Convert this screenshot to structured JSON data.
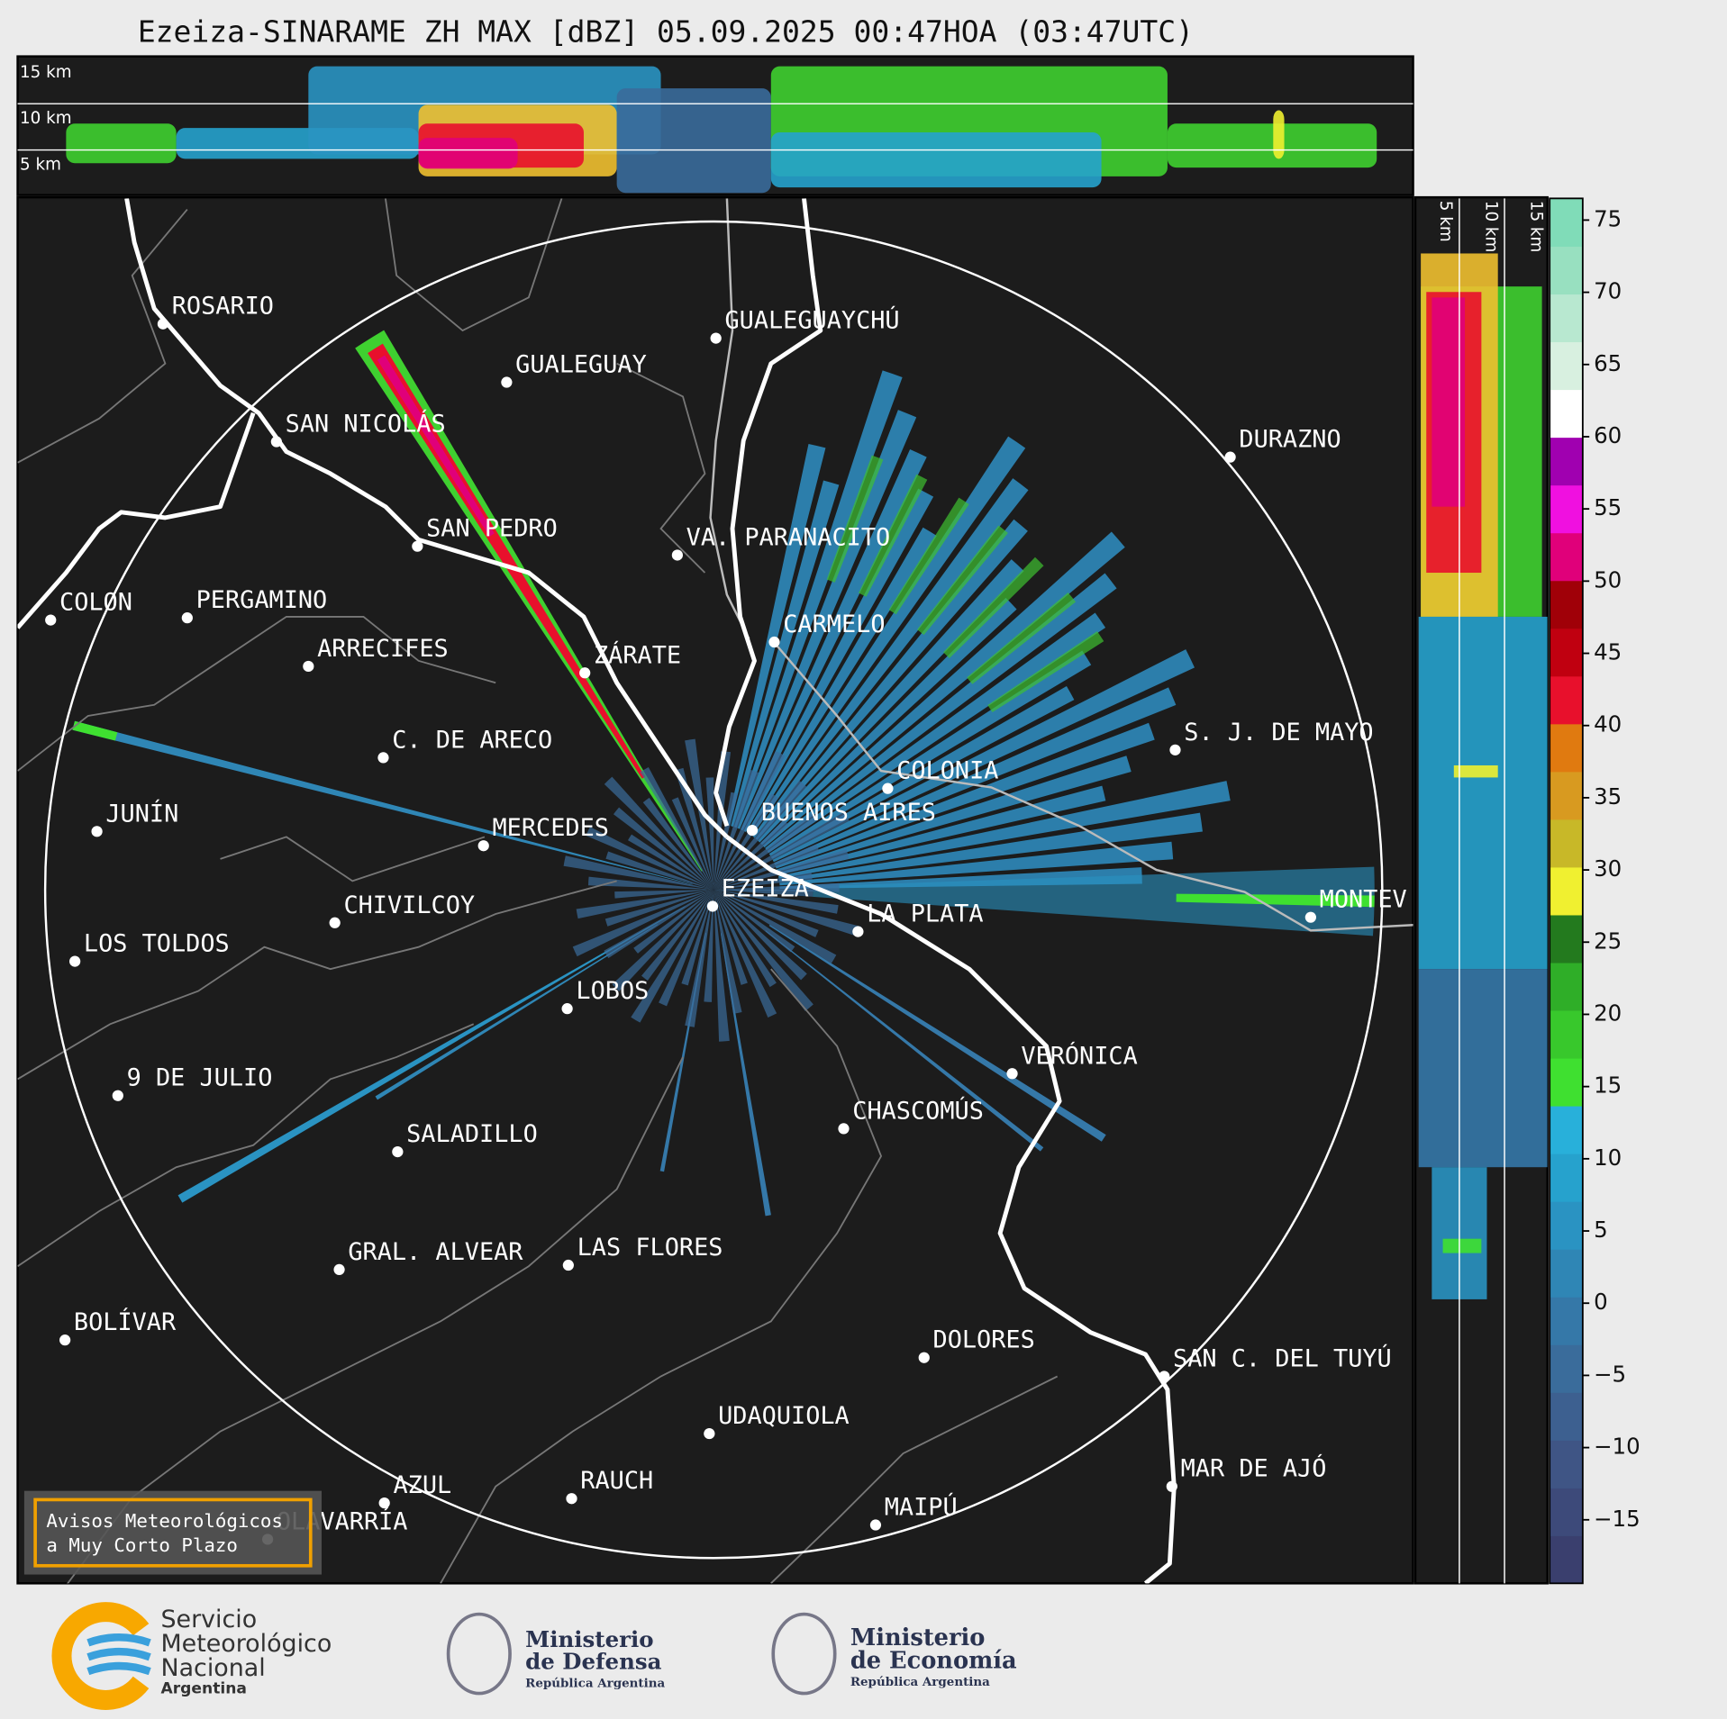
{
  "title": "Ezeiza-SINARAME ZH MAX [dBZ] 05.09.2025 00:47HOA (03:47UTC)",
  "height_panels": {
    "top": [
      "15 km",
      "10 km",
      "5 km"
    ],
    "side": [
      "5 km",
      "10 km",
      "15 km"
    ]
  },
  "cities": [
    "ROSARIO",
    "GUALEGUAY",
    "GUALEGUAYCHÚ",
    "SAN NICOLÁS",
    "DURAZNO",
    "SAN PEDRO",
    "VA. PARANACITO",
    "COLON",
    "PERGAMINO",
    "CARMELO",
    "ARRECIFES",
    "ZÁRATE",
    "C. DE ARECO",
    "S. J. DE MAYO",
    "COLONIA",
    "BUENOS AIRES",
    "JUNÍN",
    "MERCEDES",
    "EZEIZA",
    "CHIVILCOY",
    "MONTEV",
    "LA PLATA",
    "LOS TOLDOS",
    "LOBOS",
    "VERÓNICA",
    "9 DE JULIO",
    "CHASCOMÚS",
    "SALADILLO",
    "GRAL. ALVEAR",
    "LAS FLORES",
    "BOLÍVAR",
    "DOLORES",
    "SAN C. DEL TUYÚ",
    "UDAQUIOLA",
    "MAR DE AJÓ",
    "RAUCH",
    "AZUL",
    "MAIPÚ",
    "OLAVARRÍA"
  ],
  "colorbar": {
    "lim": [
      -19.4,
      76.5
    ],
    "ticks": [
      75,
      70,
      65,
      60,
      55,
      50,
      45,
      40,
      35,
      30,
      25,
      20,
      15,
      10,
      5,
      0,
      {
        "value": -5,
        "label": "−5"
      },
      {
        "value": -10,
        "label": "−10"
      },
      {
        "value": -15,
        "label": "−15"
      }
    ],
    "colors": [
      "#3a3f6e",
      "#3d4a7a",
      "#3f5585",
      "#3d6090",
      "#3a6c9b",
      "#3578a8",
      "#2f86b5",
      "#2a93c2",
      "#26a2cd",
      "#28b0da",
      "#3fe030",
      "#38c82c",
      "#2fae28",
      "#237a1e",
      "#f0f030",
      "#c8b828",
      "#d89a20",
      "#e07a10",
      "#e8102c",
      "#c00010",
      "#a00008",
      "#e0007a",
      "#f010e0",
      "#a000b0",
      "#ffffff",
      "#d8f0e0",
      "#b8e8d0",
      "#98e0c0",
      "#80dcb8"
    ]
  },
  "notice": [
    "Avisos Meteorológicos",
    "a Muy Corto Plazo"
  ],
  "logos": {
    "smn": [
      "Servicio",
      "Meteorológico",
      "Nacional",
      "Argentina"
    ],
    "defensa": [
      "Ministerio",
      "de Defensa",
      "República Argentina"
    ],
    "economia": [
      "Ministerio",
      "de Economía",
      "República Argentina"
    ]
  }
}
